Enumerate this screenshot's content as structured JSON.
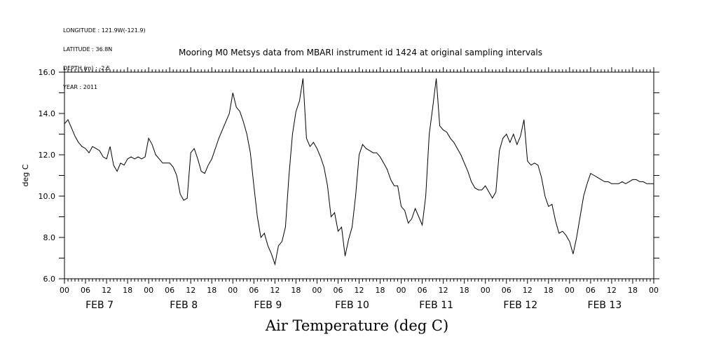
{
  "header": {
    "longitude": "LONGITUDE : 121.9W(-121.9)",
    "latitude": "LATITUDE : 36.8N",
    "depth": "DEPTH (m) : -2.5",
    "year": "YEAR : 2011",
    "subtitle": "Mooring M0 Metsys data from MBARI instrument id 1424 at original sampling intervals"
  },
  "chart_data": {
    "type": "line",
    "title": "Air Temperature (deg C)",
    "ylabel": "deg C",
    "xlabel": "",
    "ylim": [
      6.0,
      16.0
    ],
    "yticks": [
      "6.0",
      "8.0",
      "10.0",
      "12.0",
      "14.0",
      "16.0"
    ],
    "xlim_hours": [
      0,
      168
    ],
    "hour_tick_labels": [
      "00",
      "06",
      "12",
      "18",
      "00",
      "06",
      "12",
      "18",
      "00",
      "06",
      "12",
      "18",
      "00",
      "06",
      "12",
      "18",
      "00",
      "06",
      "12",
      "18",
      "00",
      "06",
      "12",
      "18",
      "00",
      "06",
      "12",
      "18",
      "00"
    ],
    "day_labels": [
      "FEB  7",
      "FEB  8",
      "FEB  9",
      "FEB 10",
      "FEB 11",
      "FEB 12",
      "FEB 13"
    ],
    "grid": false,
    "series": [
      {
        "values_time_hours": [
          0,
          1,
          2,
          3,
          4,
          5,
          6,
          7,
          8,
          9,
          10,
          11,
          12,
          13,
          14,
          15,
          16,
          17,
          18,
          19,
          20,
          21,
          22,
          23,
          24,
          25,
          26,
          27,
          28,
          29,
          30,
          31,
          32,
          33,
          34,
          35,
          36,
          37,
          38,
          39,
          40,
          41,
          42,
          43,
          44,
          45,
          46,
          47,
          48,
          49,
          50,
          51,
          52,
          53,
          54,
          55,
          56,
          57,
          58,
          59,
          60,
          61,
          62,
          63,
          64,
          65,
          66,
          67,
          68,
          69,
          70,
          71,
          72,
          73,
          74,
          75,
          76,
          77,
          78,
          79,
          80,
          81,
          82,
          83,
          84,
          85,
          86,
          87,
          88,
          89,
          90,
          91,
          92,
          93,
          94,
          95,
          96,
          97,
          98,
          99,
          100,
          101,
          102,
          103,
          104,
          105,
          106,
          107,
          108,
          109,
          110,
          111,
          112,
          113,
          114,
          115,
          116,
          117,
          118,
          119,
          120,
          121,
          122,
          123,
          124,
          125,
          126,
          127,
          128,
          129,
          130,
          131,
          132,
          133,
          134,
          135,
          136,
          137,
          138,
          139,
          140,
          141,
          142,
          143,
          144,
          145,
          146,
          147,
          148,
          149,
          150,
          151,
          152,
          153,
          154,
          155,
          156,
          157,
          158,
          159,
          160,
          161,
          162,
          163,
          164,
          165,
          166,
          167,
          168
        ],
        "values": [
          13.5,
          13.7,
          13.3,
          12.9,
          12.6,
          12.4,
          12.3,
          12.1,
          12.4,
          12.3,
          12.2,
          11.9,
          11.8,
          12.4,
          11.5,
          11.2,
          11.6,
          11.5,
          11.8,
          11.9,
          11.8,
          11.9,
          11.8,
          11.9,
          12.8,
          12.5,
          12.0,
          11.8,
          11.6,
          11.6,
          11.6,
          11.4,
          11.0,
          10.1,
          9.8,
          9.9,
          12.1,
          12.3,
          11.8,
          11.2,
          11.1,
          11.5,
          11.8,
          12.3,
          12.8,
          13.2,
          13.6,
          14.0,
          15.0,
          14.3,
          14.1,
          13.6,
          13.0,
          12.1,
          10.5,
          9.0,
          8.0,
          8.2,
          7.6,
          7.2,
          6.7,
          7.6,
          7.8,
          8.5,
          11.0,
          13.0,
          14.1,
          14.6,
          15.7,
          12.8,
          12.4,
          12.6,
          12.3,
          11.9,
          11.4,
          10.5,
          9.0,
          9.2,
          8.3,
          8.5,
          7.1,
          7.9,
          8.5,
          10.0,
          12.0,
          12.5,
          12.3,
          12.2,
          12.1,
          12.1,
          11.9,
          11.6,
          11.3,
          10.8,
          10.5,
          10.5,
          9.5,
          9.3,
          8.7,
          8.9,
          9.4,
          9.0,
          8.6,
          10.0,
          13.0,
          14.3,
          15.7,
          13.4,
          13.2,
          13.1,
          12.8,
          12.6,
          12.3,
          12.0,
          11.6,
          11.2,
          10.7,
          10.4,
          10.3,
          10.3,
          10.5,
          10.2,
          9.9,
          10.2,
          12.2,
          12.8,
          13.0,
          12.6,
          13.0,
          12.5,
          12.9,
          13.7,
          11.7,
          11.5,
          11.6,
          11.5,
          10.9,
          10.0,
          9.5,
          9.6,
          8.8,
          8.2,
          8.3,
          8.1,
          7.8,
          7.2,
          8.0,
          9.0,
          10.0,
          10.6,
          11.1,
          11.0,
          10.9,
          10.8,
          10.7,
          10.7,
          10.6,
          10.6,
          10.6,
          10.7,
          10.6,
          10.7,
          10.8,
          10.8,
          10.7,
          10.7,
          10.6,
          10.6,
          10.6
        ]
      }
    ]
  }
}
